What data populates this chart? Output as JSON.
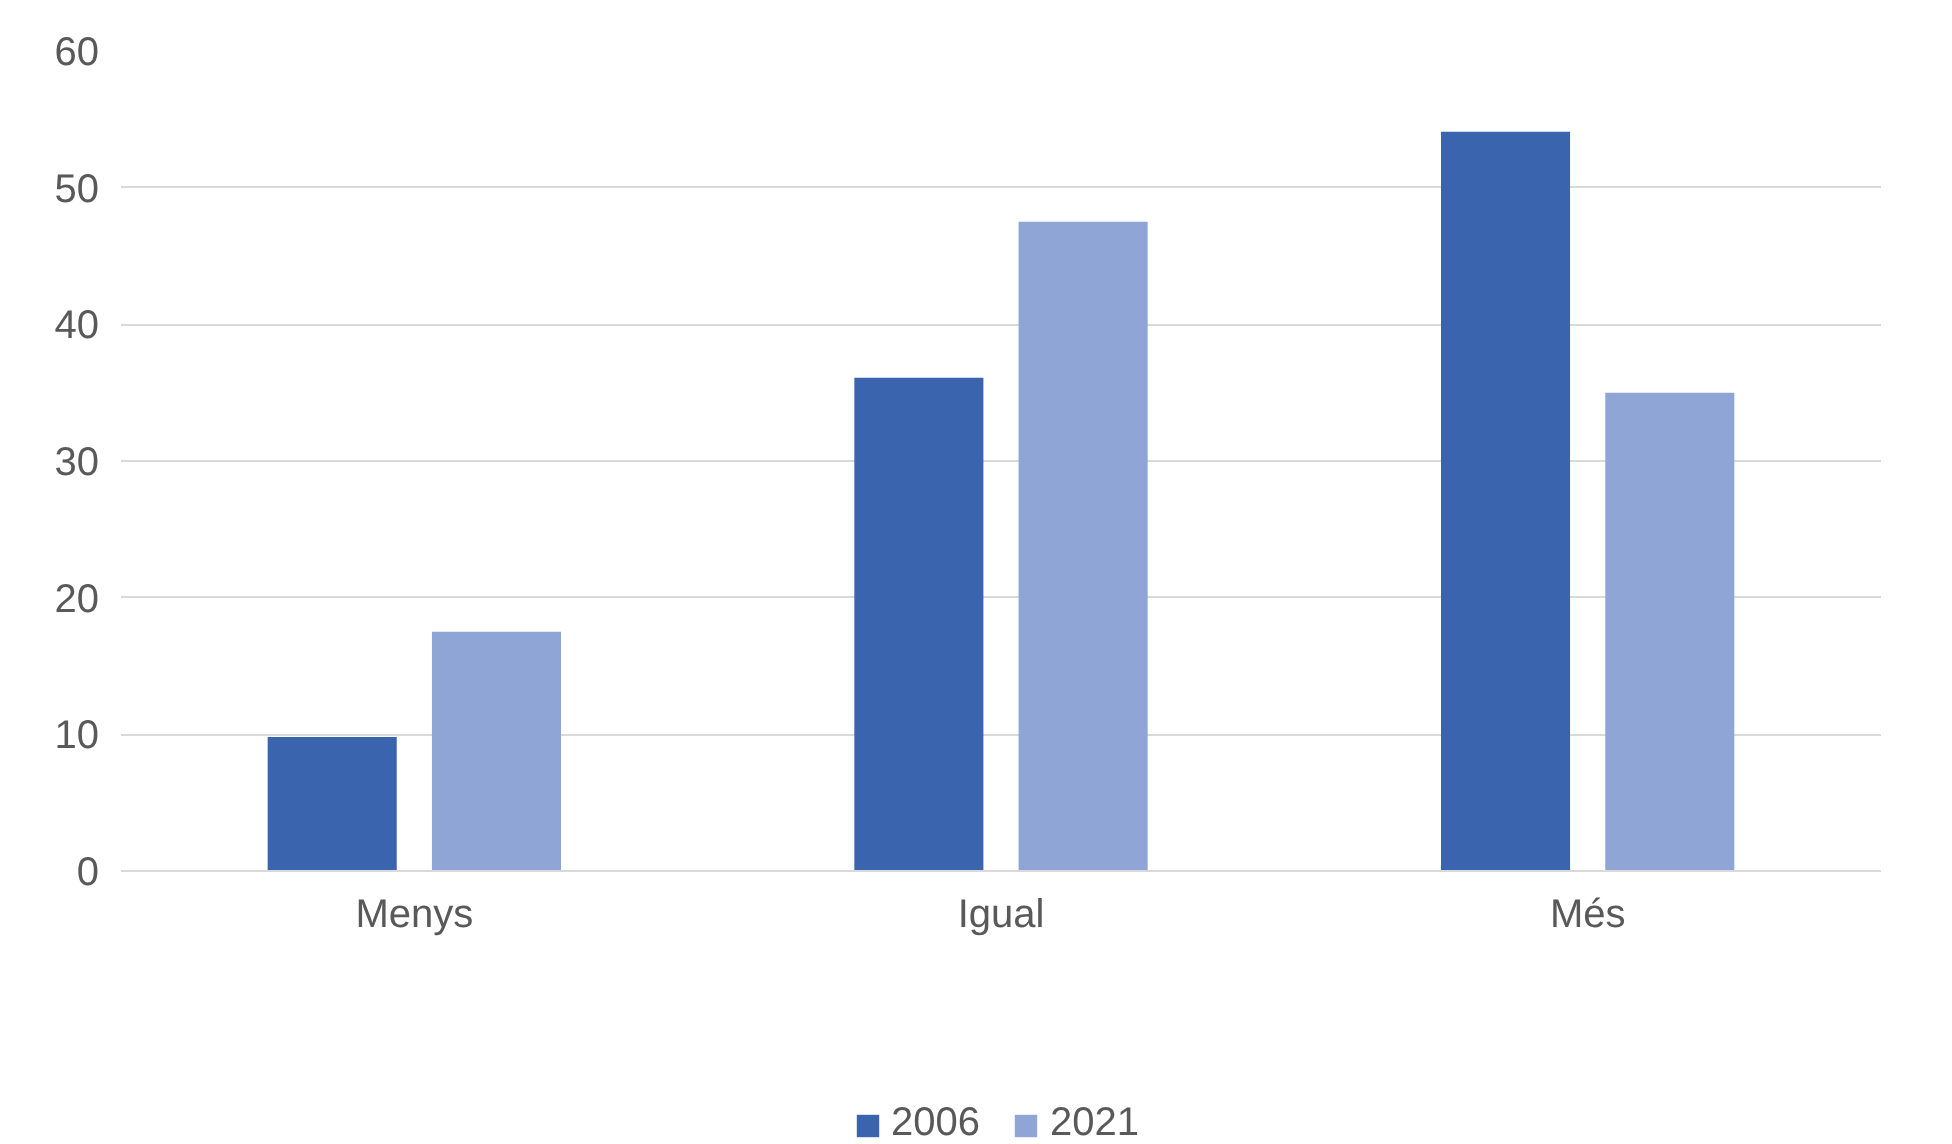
{
  "chart_data": {
    "type": "bar",
    "categories": [
      "Menys",
      "Igual",
      "Més"
    ],
    "series": [
      {
        "name": "2006",
        "color": "#3a64ad",
        "values": [
          9.8,
          36.1,
          54.1
        ]
      },
      {
        "name": "2021",
        "color": "#8fa5d6",
        "values": [
          17.5,
          47.5,
          35.0
        ]
      }
    ],
    "ylim": [
      0,
      60
    ],
    "yticks": [
      0,
      10,
      20,
      30,
      40,
      50,
      60
    ],
    "grid": "y",
    "legend": "bottom"
  }
}
